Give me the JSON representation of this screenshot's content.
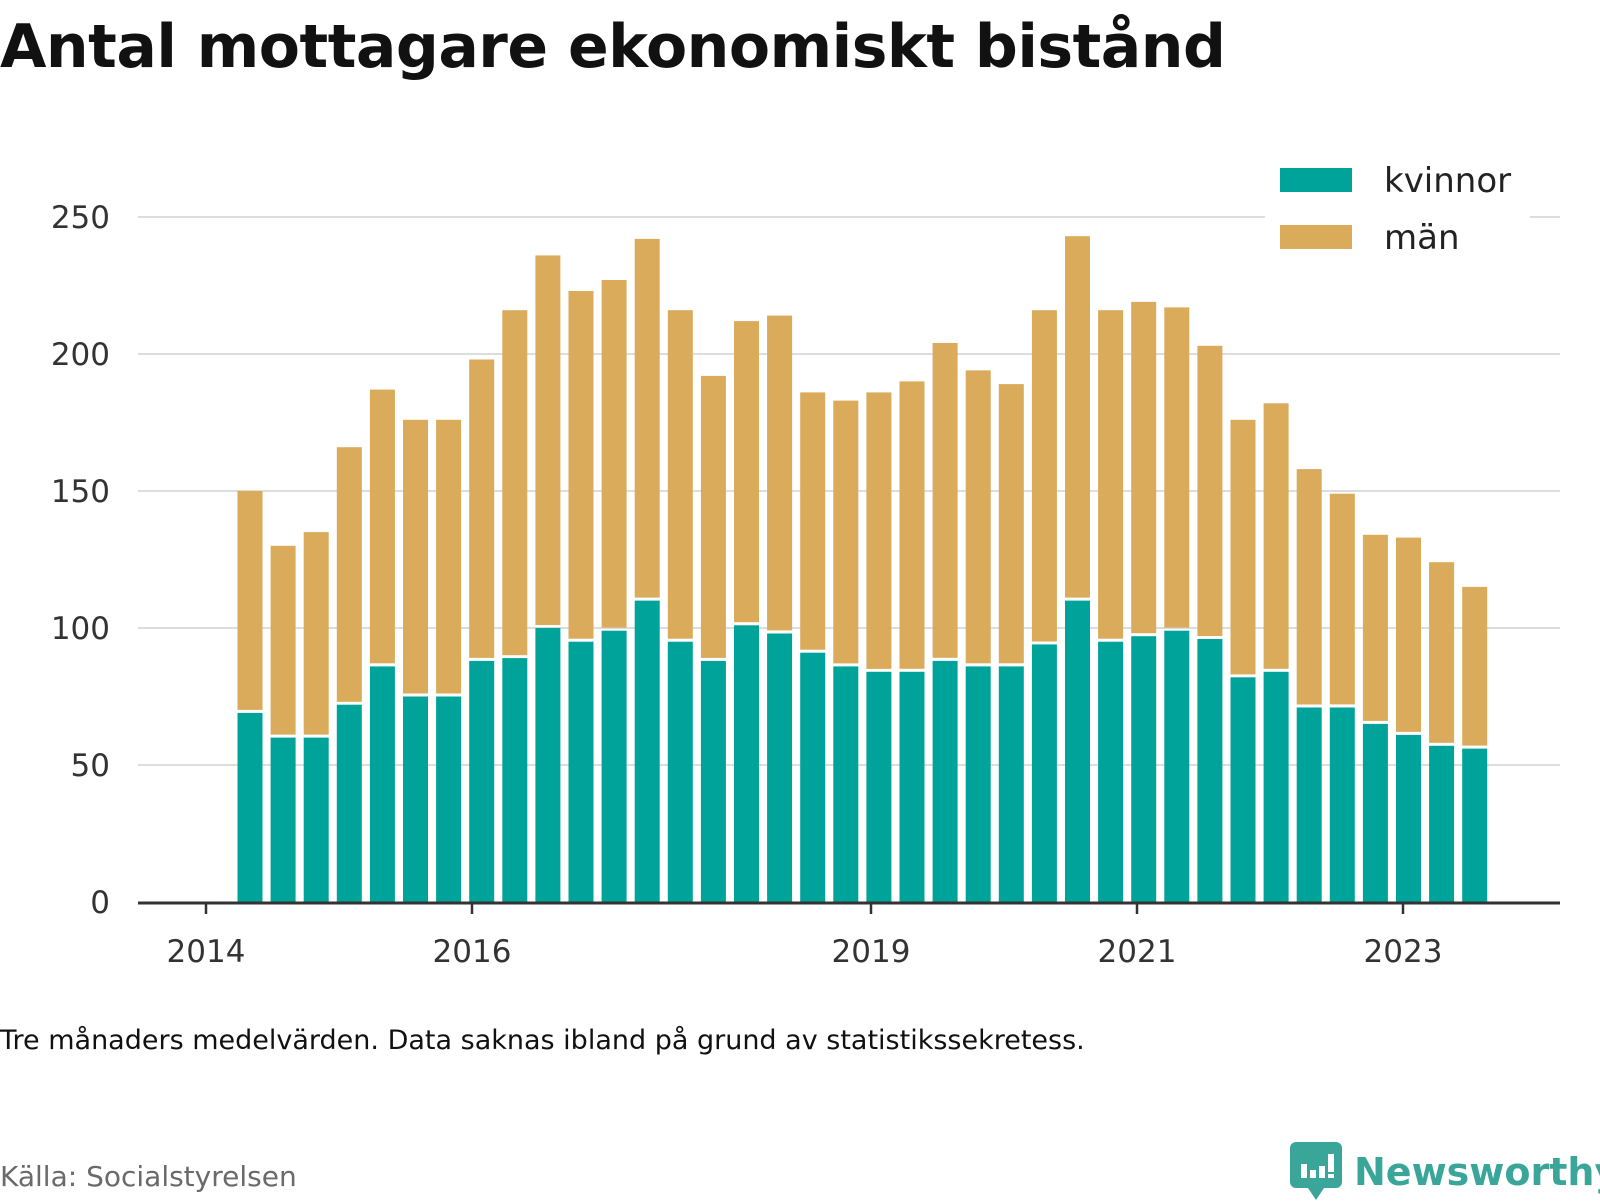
{
  "title": "Antal mottagare ekonomiskt bistånd",
  "note": "Tre månaders medelvärden. Data saknas ibland på grund av statistikssekretess.",
  "source": "Källa: Socialstyrelsen",
  "brand": "Newsworthy",
  "colors": {
    "kvinnor": "#00a39a",
    "man": "#d9ab5a",
    "grid": "#dddddd",
    "axis": "#333333",
    "brand": "#3aa69a"
  },
  "chart_data": {
    "type": "bar",
    "stacked": true,
    "x_ticks": [
      "2014",
      "2016",
      "2019",
      "2021",
      "2023"
    ],
    "y_ticks": [
      0,
      50,
      100,
      150,
      200,
      250
    ],
    "ylim": [
      0,
      250
    ],
    "grid": true,
    "legend_position": "top-right",
    "series": [
      {
        "name": "kvinnor",
        "color": "#00a39a",
        "values": [
          69,
          60,
          60,
          72,
          86,
          75,
          75,
          88,
          89,
          100,
          95,
          99,
          110,
          95,
          88,
          101,
          98,
          91,
          86,
          84,
          84,
          88,
          86,
          86,
          94,
          110,
          95,
          97,
          99,
          96,
          82,
          84,
          71,
          71,
          65,
          61,
          57,
          56
        ]
      },
      {
        "name": "män",
        "color": "#d9ab5a",
        "values": [
          81,
          70,
          75,
          94,
          101,
          101,
          101,
          110,
          127,
          136,
          128,
          128,
          132,
          121,
          104,
          111,
          116,
          95,
          97,
          102,
          106,
          116,
          108,
          103,
          122,
          133,
          121,
          122,
          118,
          107,
          94,
          98,
          87,
          78,
          69,
          72,
          67,
          59
        ]
      }
    ]
  }
}
